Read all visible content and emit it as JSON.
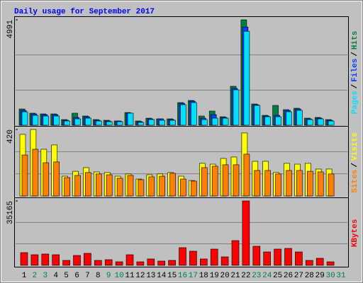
{
  "legend_separator": "/",
  "chart_data": [
    {
      "type": "bar",
      "title": "Daily usage for September 2017",
      "ylim": [
        0,
        4991
      ],
      "yticks": [
        4991
      ],
      "grid_divisions": 3,
      "series": [
        {
          "name": "Hits",
          "color": "#008040",
          "values": [
            770,
            570,
            536,
            536,
            268,
            570,
            436,
            268,
            235,
            201,
            603,
            201,
            335,
            302,
            302,
            1072,
            1173,
            436,
            670,
            402,
            1843,
            4991,
            1005,
            469,
            938,
            737,
            804,
            335,
            369,
            268,
            null
          ]
        },
        {
          "name": "Files",
          "color": "#0040ff",
          "values": [
            704,
            536,
            503,
            503,
            235,
            369,
            402,
            235,
            201,
            201,
            570,
            168,
            302,
            302,
            268,
            1039,
            1139,
            335,
            503,
            369,
            1742,
            4650,
            972,
            436,
            469,
            704,
            770,
            302,
            335,
            235,
            null
          ]
        },
        {
          "name": "Pages",
          "color": "#00e0ff",
          "values": [
            636,
            469,
            436,
            436,
            201,
            302,
            335,
            201,
            168,
            168,
            570,
            134,
            268,
            235,
            235,
            972,
            1072,
            268,
            335,
            335,
            1675,
            4450,
            938,
            402,
            402,
            636,
            704,
            268,
            302,
            201,
            null
          ]
        }
      ]
    },
    {
      "type": "bar",
      "ylim": [
        0,
        420
      ],
      "yticks": [
        420
      ],
      "grid_divisions": 3,
      "series": [
        {
          "name": "Visits",
          "color": "#ffff00",
          "values": [
            389,
            420,
            295,
            322,
            125,
            156,
            179,
            152,
            148,
            125,
            139,
            107,
            134,
            139,
            148,
            125,
            98,
            206,
            201,
            237,
            246,
            398,
            219,
            219,
            148,
            206,
            201,
            206,
            170,
            170,
            null
          ]
        },
        {
          "name": "Sites",
          "color": "#ff8000",
          "values": [
            259,
            295,
            210,
            215,
            116,
            130,
            148,
            139,
            134,
            112,
            130,
            103,
            121,
            125,
            143,
            107,
            94,
            179,
            188,
            197,
            197,
            264,
            161,
            161,
            139,
            161,
            161,
            156,
            152,
            139,
            null
          ]
        }
      ]
    },
    {
      "type": "bar",
      "ylim": [
        0,
        35165
      ],
      "yticks": [
        35165
      ],
      "grid_divisions": 3,
      "categories": [
        "1",
        "2",
        "3",
        "4",
        "5",
        "6",
        "7",
        "8",
        "9",
        "10",
        "11",
        "12",
        "13",
        "14",
        "15",
        "16",
        "17",
        "18",
        "19",
        "20",
        "21",
        "22",
        "23",
        "24",
        "25",
        "26",
        "27",
        "28",
        "29",
        "30",
        "31"
      ],
      "category_colors": [
        "#000000",
        "#008040",
        "#008040",
        "#000000",
        "#000000",
        "#000000",
        "#000000",
        "#000000",
        "#008040",
        "#008040",
        "#000000",
        "#000000",
        "#000000",
        "#000000",
        "#000000",
        "#008040",
        "#008040",
        "#000000",
        "#000000",
        "#000000",
        "#000000",
        "#000000",
        "#008040",
        "#008040",
        "#000000",
        "#000000",
        "#000000",
        "#000000",
        "#000000",
        "#008040",
        "#008040"
      ],
      "series": [
        {
          "name": "KBytes",
          "color": "#ff0000",
          "values": [
            6950,
            5790,
            6180,
            5790,
            2700,
            5400,
            6560,
            2700,
            3090,
            1930,
            5790,
            1930,
            3480,
            2320,
            2700,
            9650,
            7720,
            3480,
            8880,
            4630,
            13510,
            35165,
            10420,
            7330,
            8880,
            9260,
            7330,
            2700,
            3860,
            1930,
            null
          ]
        }
      ]
    }
  ]
}
